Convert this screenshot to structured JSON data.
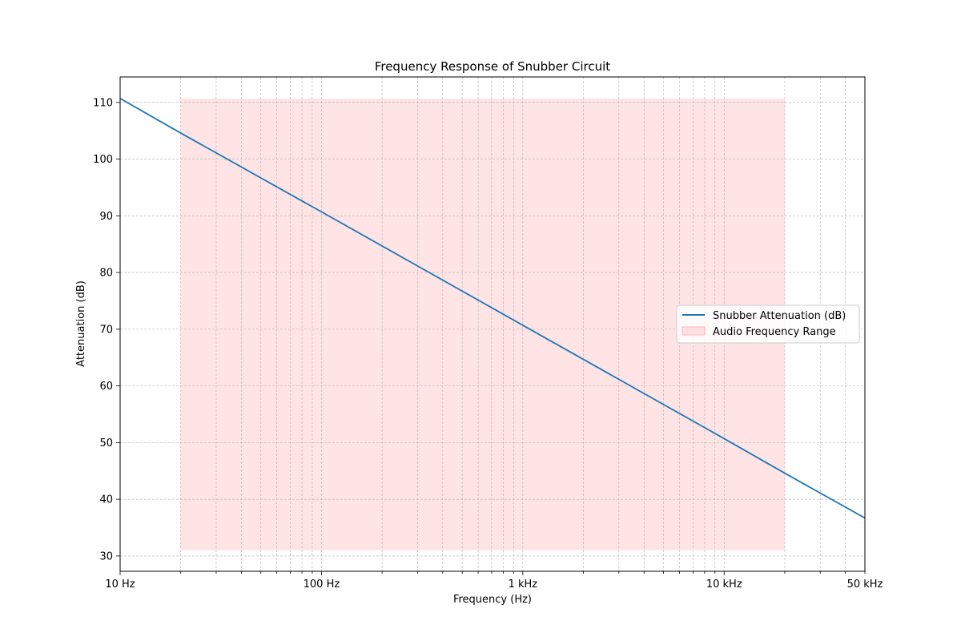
{
  "chart_data": {
    "type": "line",
    "title": "Frequency Response of Snubber Circuit",
    "xlabel": "Frequency (Hz)",
    "ylabel": "Attenuation (dB)",
    "xscale": "log",
    "xlim": [
      10,
      50000
    ],
    "ylim": [
      27.3,
      114.5
    ],
    "grid": true,
    "legend_position": "center-right",
    "x_ticks": [
      {
        "value": 10,
        "label": "10 Hz"
      },
      {
        "value": 100,
        "label": "100 Hz"
      },
      {
        "value": 1000,
        "label": "1 kHz"
      },
      {
        "value": 10000,
        "label": "10 kHz"
      },
      {
        "value": 50000,
        "label": "50 kHz"
      }
    ],
    "y_ticks": [
      30,
      40,
      50,
      60,
      70,
      80,
      90,
      100,
      110
    ],
    "series": [
      {
        "name": "Snubber Attenuation (dB)",
        "color": "#1f77b4",
        "x": [
          10,
          20,
          100,
          1000,
          10000,
          20000,
          50000
        ],
        "y": [
          110.7,
          104.6,
          90.7,
          70.7,
          50.7,
          44.6,
          36.7
        ]
      }
    ],
    "shaded_region": {
      "name": "Audio Frequency Range",
      "color": "#ffb3b8",
      "x_start": 20,
      "x_end": 20000,
      "y_start": 31.0,
      "y_end": 110.7
    }
  }
}
